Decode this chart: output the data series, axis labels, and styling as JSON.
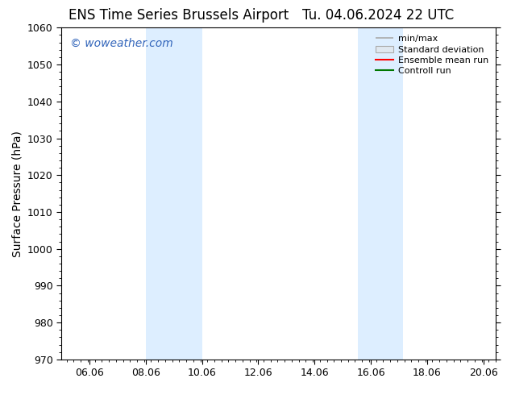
{
  "title_left": "ENS Time Series Brussels Airport",
  "title_right": "Tu. 04.06.2024 22 UTC",
  "ylabel": "Surface Pressure (hPa)",
  "xlim": [
    5.06,
    20.5
  ],
  "ylim": [
    970,
    1060
  ],
  "yticks": [
    970,
    980,
    990,
    1000,
    1010,
    1020,
    1030,
    1040,
    1050,
    1060
  ],
  "xtick_labels": [
    "06.06",
    "08.06",
    "10.06",
    "12.06",
    "14.06",
    "16.06",
    "18.06",
    "20.06"
  ],
  "xtick_positions": [
    6.06,
    8.06,
    10.06,
    12.06,
    14.06,
    16.06,
    18.06,
    20.06
  ],
  "background_color": "#ffffff",
  "plot_bg_color": "#ffffff",
  "shaded_regions": [
    {
      "xmin": 8.06,
      "xmax": 10.06,
      "color": "#ddeeff"
    },
    {
      "xmin": 15.6,
      "xmax": 17.2,
      "color": "#ddeeff"
    }
  ],
  "watermark_text": "© woweather.com",
  "watermark_color": "#3366bb",
  "legend_labels": [
    "min/max",
    "Standard deviation",
    "Ensemble mean run",
    "Controll run"
  ],
  "legend_colors_line": [
    "#aaaaaa",
    "#cccccc",
    "#ff0000",
    "#007700"
  ],
  "title_fontsize": 12,
  "ylabel_fontsize": 10,
  "tick_fontsize": 9,
  "legend_fontsize": 8,
  "watermark_fontsize": 10
}
